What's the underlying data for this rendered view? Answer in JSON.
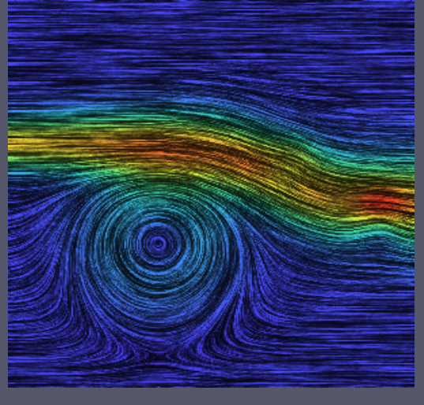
{
  "chart_data": {
    "type": "flow_field",
    "tick_labels": false,
    "grid": false,
    "xlim": [
      0,
      1
    ],
    "ylim": [
      0,
      1
    ],
    "jet": {
      "y_left": 0.63,
      "y_right": 0.47,
      "bend_x": 0.66,
      "width": 0.075,
      "speed": 1.0
    },
    "background_speed": 0.05,
    "vortices": [
      {
        "x": 0.37,
        "y": 0.38,
        "strength": 0.9,
        "radius": 0.16
      },
      {
        "x": 0.92,
        "y": 0.43,
        "strength": 0.6,
        "radius": 0.07
      },
      {
        "x": 0.7,
        "y": 0.58,
        "strength": 0.4,
        "radius": 0.06
      }
    ]
  }
}
